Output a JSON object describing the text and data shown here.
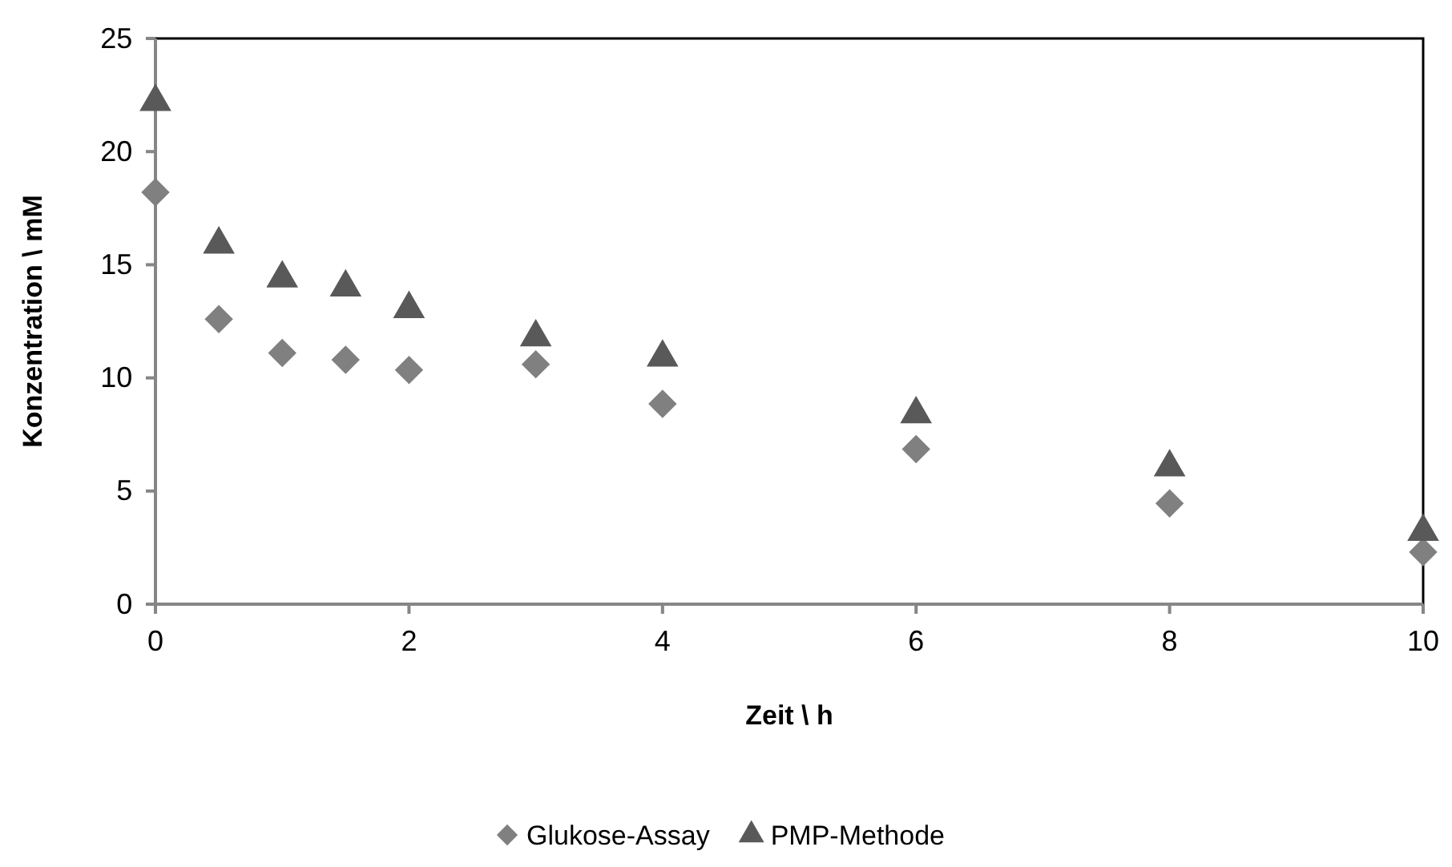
{
  "chart_data": {
    "type": "scatter",
    "xlabel": "Zeit \\ h",
    "ylabel": "Konzentration \\ mM",
    "x": [
      0,
      0.5,
      1,
      1.5,
      2,
      3,
      4,
      6,
      8,
      10
    ],
    "series": [
      {
        "name": "Glukose-Assay",
        "color": "#808080",
        "marker": "diamond",
        "values": [
          18.2,
          12.6,
          11.1,
          10.8,
          10.35,
          10.6,
          8.85,
          6.85,
          4.45,
          2.3
        ]
      },
      {
        "name": "PMP-Methode",
        "color": "#595959",
        "marker": "triangle",
        "values": [
          22.2,
          15.9,
          14.4,
          14.0,
          13.05,
          11.8,
          10.9,
          8.4,
          6.05,
          3.2
        ]
      }
    ],
    "xlim": [
      0,
      10
    ],
    "xticks": [
      0,
      2,
      4,
      6,
      8,
      10
    ],
    "ylim": [
      0,
      25
    ],
    "yticks": [
      0,
      5,
      10,
      15,
      20,
      25
    ],
    "grid": false,
    "legend": "bottom"
  }
}
